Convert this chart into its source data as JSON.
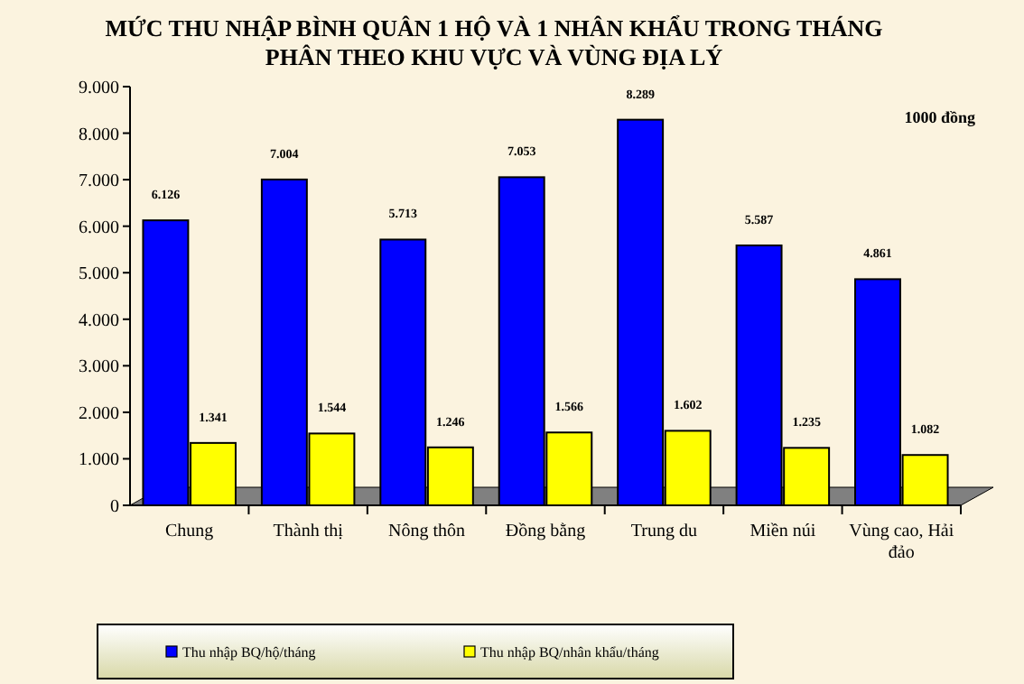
{
  "chart_data": {
    "type": "bar",
    "title": "MỨC THU NHẬP BÌNH QUÂN 1 HỘ VÀ 1 NHÂN KHẨU TRONG THÁNG\nPHÂN THEO KHU VỰC VÀ VÙNG ĐỊA LÝ",
    "categories": [
      "Chung",
      "Thành thị",
      "Nông thôn",
      "Đồng bằng",
      "Trung du",
      "Miền núi",
      "Vùng cao, Hải đảo"
    ],
    "series": [
      {
        "name": "Thu nhập BQ/hộ/tháng",
        "color": "#0000ff",
        "values": [
          6126,
          7004,
          5713,
          7053,
          8289,
          5587,
          4861
        ],
        "value_labels": [
          "6.126",
          "7.004",
          "5.713",
          "7.053",
          "8.289",
          "5.587",
          "4.861"
        ]
      },
      {
        "name": "Thu nhập BQ/nhân khẩu/tháng",
        "color": "#ffff00",
        "values": [
          1341,
          1544,
          1246,
          1566,
          1602,
          1235,
          1082
        ],
        "value_labels": [
          "1.341",
          "1.544",
          "1.246",
          "1.566",
          "1.602",
          "1.235",
          "1.082"
        ]
      }
    ],
    "ylim": [
      0,
      9000
    ],
    "yticks": [
      {
        "value": 0,
        "label": "0"
      },
      {
        "value": 1000,
        "label": "1.000"
      },
      {
        "value": 2000,
        "label": "2.000"
      },
      {
        "value": 3000,
        "label": "3.000"
      },
      {
        "value": 4000,
        "label": "4.000"
      },
      {
        "value": 5000,
        "label": "5.000"
      },
      {
        "value": 6000,
        "label": "6.000"
      },
      {
        "value": 7000,
        "label": "7.000"
      },
      {
        "value": 8000,
        "label": "8.000"
      },
      {
        "value": 9000,
        "label": "9.000"
      }
    ],
    "annotations": [
      "1000 đồng"
    ],
    "legend": "bottom",
    "grid": false
  }
}
